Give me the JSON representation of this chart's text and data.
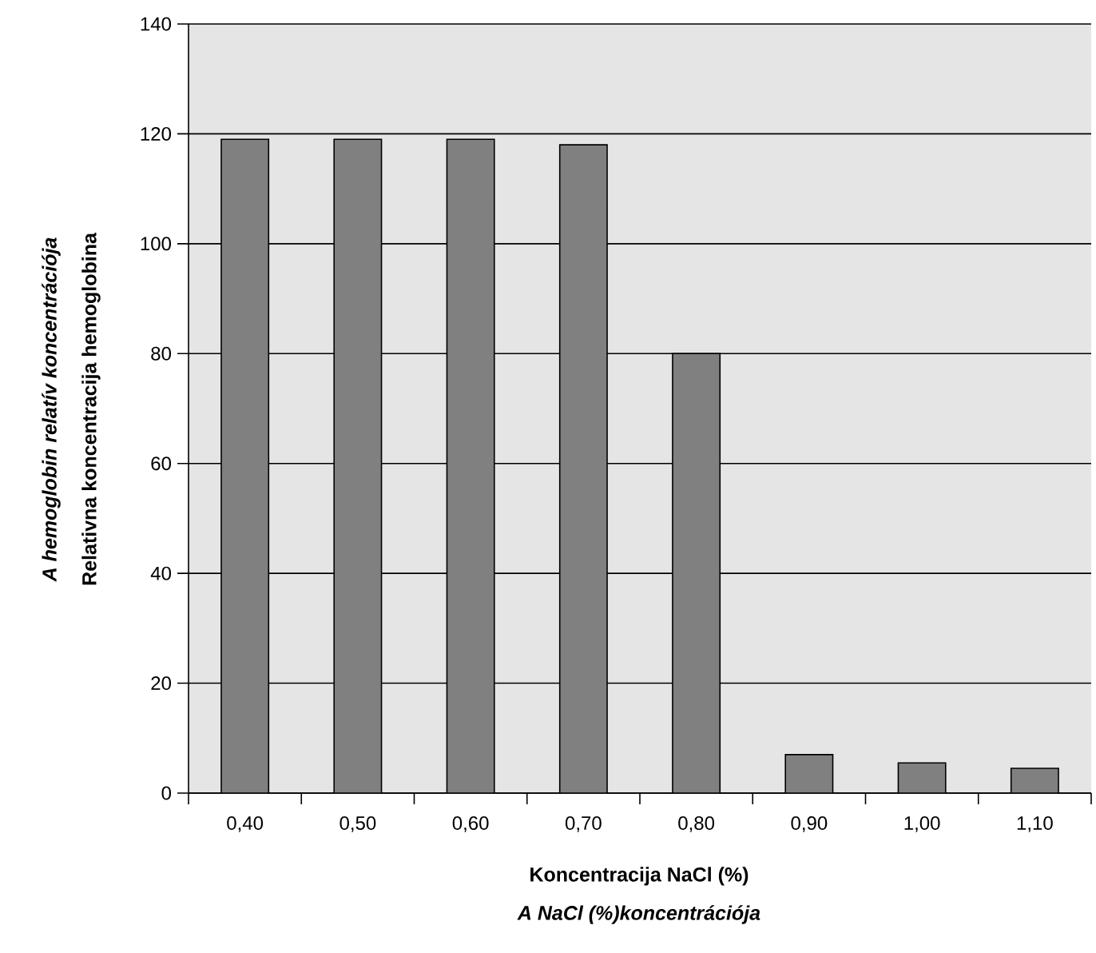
{
  "chart_data": {
    "type": "bar",
    "categories": [
      "0,40",
      "0,50",
      "0,60",
      "0,70",
      "0,80",
      "0,90",
      "1,00",
      "1,10"
    ],
    "values": [
      119,
      119,
      119,
      118,
      80,
      7,
      5.5,
      4.5
    ],
    "color": "#808080",
    "xlabel": "Koncentracija NaCl (%)",
    "ylabel": "Relativna koncentracija hemoglobina",
    "annotations": [
      "A hemoglobin relatív koncentrációja",
      "A NaCl (%)koncentrációja"
    ],
    "ylim": [
      0,
      140
    ],
    "yticks": [
      0,
      20,
      40,
      60,
      80,
      100,
      120,
      140
    ],
    "grid": "y"
  }
}
